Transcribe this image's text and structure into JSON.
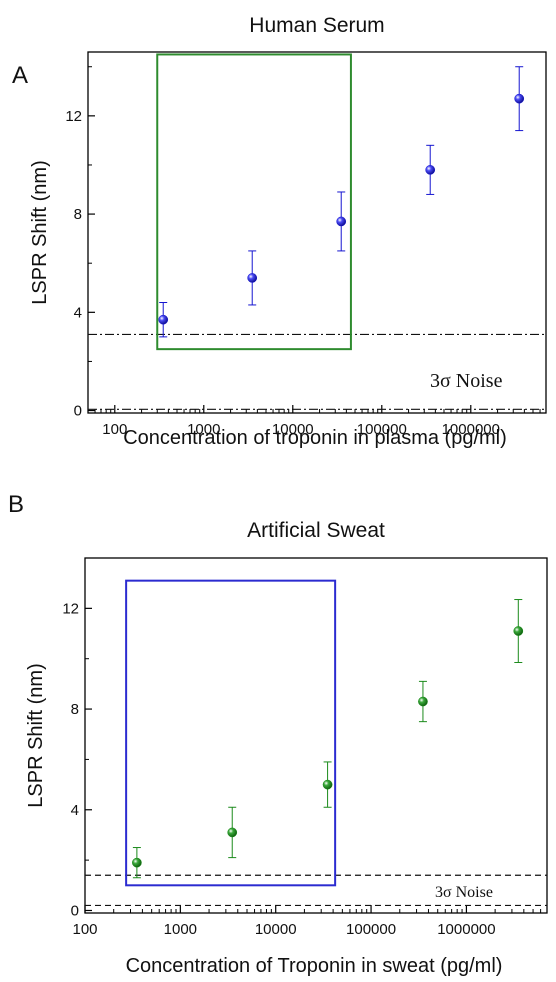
{
  "chart_data": [
    {
      "panel_label": "A",
      "type": "scatter",
      "title": "Human Serum",
      "xlabel": "Concentration of troponin in plasma (pg/ml)",
      "ylabel": "LSPR Shift (nm)",
      "x_scale": "log",
      "xlim": [
        50,
        7000000
      ],
      "ylim": [
        -0.1,
        14.6
      ],
      "x_ticks": [
        100,
        1000,
        10000,
        100000,
        1000000
      ],
      "x_tick_labels": [
        "100",
        "1000",
        "10000",
        "100000",
        "1000000"
      ],
      "y_ticks": [
        0,
        4,
        8,
        12
      ],
      "y_tick_labels": [
        "0",
        "4",
        "8",
        "12"
      ],
      "series": [
        {
          "color": "#1515d0",
          "x": [
            350,
            3500,
            35000,
            350000,
            3500000
          ],
          "y": [
            3.7,
            5.4,
            7.7,
            9.8,
            12.7
          ],
          "err": [
            0.7,
            1.1,
            1.2,
            1.0,
            1.3
          ]
        }
      ],
      "reference_lines": [
        {
          "y": 3.1,
          "style": "dash-dot"
        },
        {
          "y": 0.05,
          "style": "dash-dot"
        }
      ],
      "highlight_box": {
        "x": [
          300,
          45000
        ],
        "y": [
          2.5,
          14.5
        ],
        "color": "#2e8b2e"
      },
      "annotation": {
        "prefix": "3",
        "symbol": "σ",
        "suffix": " Noise"
      }
    },
    {
      "panel_label": "B",
      "type": "scatter",
      "title": "Artificial Sweat",
      "xlabel": "Concentration of Troponin in sweat (pg/ml)",
      "ylabel": "LSPR Shift (nm)",
      "x_scale": "log",
      "xlim": [
        100,
        7000000
      ],
      "ylim": [
        -0.1,
        14
      ],
      "x_ticks": [
        100,
        1000,
        10000,
        100000,
        1000000
      ],
      "x_tick_labels": [
        "100",
        "1000",
        "10000",
        "100000",
        "1000000"
      ],
      "y_ticks": [
        0,
        4,
        8,
        12
      ],
      "y_tick_labels": [
        "0",
        "4",
        "8",
        "12"
      ],
      "series": [
        {
          "color": "#1a8a1a",
          "x": [
            350,
            3500,
            35000,
            350000,
            3500000
          ],
          "y": [
            1.9,
            3.1,
            5.0,
            8.3,
            11.1
          ],
          "err": [
            0.6,
            1.0,
            0.9,
            0.8,
            1.25
          ]
        }
      ],
      "reference_lines": [
        {
          "y": 1.4,
          "style": "dashed"
        },
        {
          "y": 0.2,
          "style": "dashed"
        }
      ],
      "highlight_box": {
        "x": [
          270,
          42000
        ],
        "y": [
          1.0,
          13.1
        ],
        "color": "#2b2bd0"
      },
      "annotation": {
        "prefix": "3",
        "symbol": "σ",
        "suffix": " Noise"
      }
    }
  ]
}
